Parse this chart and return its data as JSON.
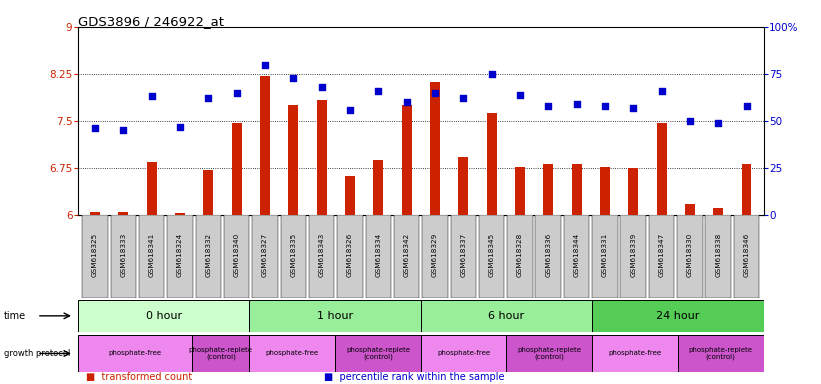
{
  "title": "GDS3896 / 246922_at",
  "samples": [
    "GSM618325",
    "GSM618333",
    "GSM618341",
    "GSM618324",
    "GSM618332",
    "GSM618340",
    "GSM618327",
    "GSM618335",
    "GSM618343",
    "GSM618326",
    "GSM618334",
    "GSM618342",
    "GSM618329",
    "GSM618337",
    "GSM618345",
    "GSM618328",
    "GSM618336",
    "GSM618344",
    "GSM618331",
    "GSM618339",
    "GSM618347",
    "GSM618330",
    "GSM618338",
    "GSM618346"
  ],
  "bar_values": [
    6.05,
    6.05,
    6.85,
    6.03,
    6.72,
    7.47,
    8.22,
    7.75,
    7.83,
    6.62,
    6.88,
    7.75,
    8.12,
    6.93,
    7.62,
    6.77,
    6.82,
    6.82,
    6.77,
    6.75,
    7.47,
    6.18,
    6.11,
    6.82
  ],
  "dot_values": [
    46,
    45,
    63,
    47,
    62,
    65,
    80,
    73,
    68,
    56,
    66,
    60,
    65,
    62,
    75,
    64,
    58,
    59,
    58,
    57,
    66,
    50,
    49,
    58
  ],
  "ylim_left": [
    6,
    9
  ],
  "ylim_right": [
    0,
    100
  ],
  "yticks_left": [
    6,
    6.75,
    7.5,
    8.25,
    9
  ],
  "yticks_right": [
    0,
    25,
    50,
    75,
    100
  ],
  "ytick_labels_left": [
    "6",
    "6.75",
    "7.5",
    "8.25",
    "9"
  ],
  "ytick_labels_right": [
    "0",
    "25",
    "50",
    "75",
    "100%"
  ],
  "bar_color": "#cc2200",
  "dot_color": "#0000cc",
  "grid_lines": [
    6.75,
    7.5,
    8.25
  ],
  "time_groups": [
    {
      "label": "0 hour",
      "start": 0,
      "end": 6,
      "color": "#ccffcc"
    },
    {
      "label": "1 hour",
      "start": 6,
      "end": 12,
      "color": "#99ee99"
    },
    {
      "label": "6 hour",
      "start": 12,
      "end": 18,
      "color": "#99ee99"
    },
    {
      "label": "24 hour",
      "start": 18,
      "end": 24,
      "color": "#55cc55"
    }
  ],
  "protocol_groups": [
    {
      "label": "phosphate-free",
      "start": 0,
      "end": 4,
      "color": "#ee88ee"
    },
    {
      "label": "phosphate-replete\n(control)",
      "start": 4,
      "end": 6,
      "color": "#cc55cc"
    },
    {
      "label": "phosphate-free",
      "start": 6,
      "end": 9,
      "color": "#ee88ee"
    },
    {
      "label": "phosphate-replete\n(control)",
      "start": 9,
      "end": 12,
      "color": "#cc55cc"
    },
    {
      "label": "phosphate-free",
      "start": 12,
      "end": 15,
      "color": "#ee88ee"
    },
    {
      "label": "phosphate-replete\n(control)",
      "start": 15,
      "end": 18,
      "color": "#cc55cc"
    },
    {
      "label": "phosphate-free",
      "start": 18,
      "end": 21,
      "color": "#ee88ee"
    },
    {
      "label": "phosphate-replete\n(control)",
      "start": 21,
      "end": 24,
      "color": "#cc55cc"
    }
  ],
  "time_label": "time",
  "protocol_label": "growth protocol",
  "legend_items": [
    {
      "color": "#cc2200",
      "label": "transformed count"
    },
    {
      "color": "#0000cc",
      "label": "percentile rank within the sample"
    }
  ],
  "bg_color": "#ffffff",
  "xticklabel_bg": "#cccccc"
}
